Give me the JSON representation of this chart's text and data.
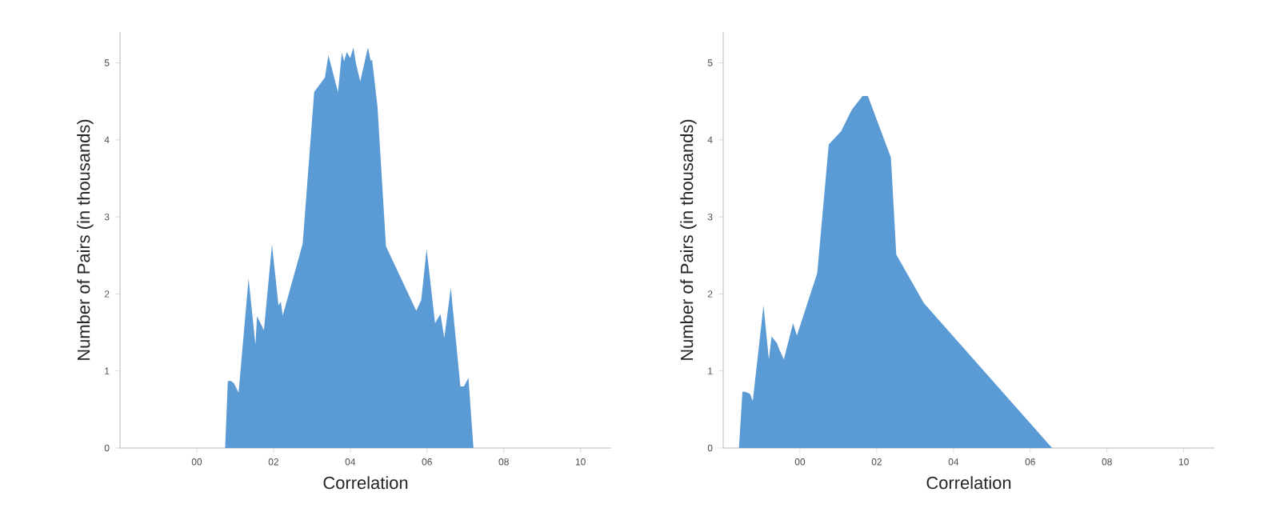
{
  "chart_data": [
    {
      "type": "area",
      "xlabel": "Correlation",
      "ylabel": "Number of Pairs (in thousands)",
      "color": "#5b9bd5",
      "x": [
        0.74,
        0.81,
        0.89,
        0.97,
        1.09,
        1.35,
        1.53,
        1.57,
        1.75,
        1.96,
        2.13,
        2.19,
        2.24,
        2.76,
        3.06,
        3.34,
        3.43,
        3.68,
        3.78,
        3.84,
        3.91,
        4.0,
        4.08,
        4.15,
        4.26,
        4.46,
        4.53,
        4.57,
        4.71,
        4.93,
        5.72,
        5.85,
        5.99,
        6.21,
        6.35,
        6.45,
        6.62,
        6.87,
        6.96,
        7.08,
        7.21
      ],
      "values": [
        0,
        0.87,
        0.87,
        0.84,
        0.72,
        2.2,
        1.34,
        1.71,
        1.53,
        2.64,
        1.85,
        1.9,
        1.72,
        2.65,
        4.62,
        4.81,
        5.1,
        4.62,
        5.13,
        5.02,
        5.14,
        5.06,
        5.2,
        4.99,
        4.76,
        5.2,
        5.03,
        5.04,
        4.43,
        2.62,
        1.78,
        1.92,
        2.58,
        1.62,
        1.74,
        1.43,
        2.08,
        0.8,
        0.8,
        0.91,
        0
      ],
      "xlim": [
        -2,
        10.8
      ],
      "ylim": [
        0,
        5.4
      ],
      "xticks": [
        {
          "value": 0,
          "label": "00"
        },
        {
          "value": 2,
          "label": "02"
        },
        {
          "value": 4,
          "label": "04"
        },
        {
          "value": 6,
          "label": "06"
        },
        {
          "value": 8,
          "label": "08"
        },
        {
          "value": 10,
          "label": "10"
        }
      ],
      "yticks": [
        0,
        1,
        2,
        3,
        4,
        5
      ]
    },
    {
      "type": "area",
      "xlabel": "Correlation",
      "ylabel": "Number of Pairs (in thousands)",
      "color": "#5b9bd5",
      "x": [
        -1.59,
        -1.5,
        -1.42,
        -1.3,
        -1.23,
        -0.95,
        -0.81,
        -0.74,
        -0.6,
        -0.53,
        -0.42,
        -0.18,
        -0.08,
        0.45,
        0.75,
        1.07,
        1.35,
        1.63,
        1.77,
        2.37,
        2.51,
        3.23,
        6.57
      ],
      "values": [
        0,
        0.73,
        0.73,
        0.7,
        0.61,
        1.85,
        1.15,
        1.45,
        1.36,
        1.27,
        1.15,
        1.62,
        1.46,
        2.27,
        3.94,
        4.11,
        4.39,
        4.57,
        4.57,
        3.77,
        2.51,
        1.88,
        0
      ],
      "xlim": [
        -2,
        10.8
      ],
      "ylim": [
        0,
        5.4
      ],
      "xticks": [
        {
          "value": 0,
          "label": "00"
        },
        {
          "value": 2,
          "label": "02"
        },
        {
          "value": 4,
          "label": "04"
        },
        {
          "value": 6,
          "label": "06"
        },
        {
          "value": 8,
          "label": "08"
        },
        {
          "value": 10,
          "label": "10"
        }
      ],
      "yticks": [
        0,
        1,
        2,
        3,
        4,
        5
      ]
    }
  ]
}
